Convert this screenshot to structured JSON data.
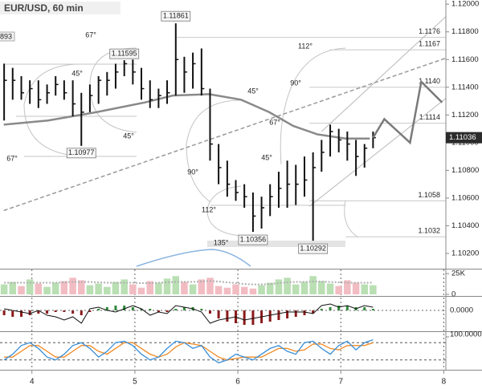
{
  "chart_data": {
    "type": "ohlc",
    "title": "EUR/USD, 60 min",
    "color": "#111111",
    "x": [
      3.73,
      3.813,
      3.897,
      3.98,
      4.063,
      4.147,
      4.23,
      4.313,
      4.397,
      4.48,
      4.563,
      4.647,
      4.73,
      4.813,
      4.897,
      4.98,
      5.063,
      5.147,
      5.23,
      5.313,
      5.397,
      5.48,
      5.563,
      5.647,
      5.73,
      5.813,
      5.897,
      5.98,
      6.063,
      6.147,
      6.23,
      6.313,
      6.397,
      6.48,
      6.563,
      6.647,
      6.73,
      6.813,
      6.897,
      6.98,
      7.063,
      7.147,
      7.23,
      7.313
    ],
    "high": [
      1.1157,
      1.1154,
      1.1148,
      1.1145,
      1.1145,
      1.1142,
      1.1148,
      1.1145,
      1.1145,
      1.1136,
      1.1142,
      1.1148,
      1.1151,
      1.1157,
      1.11595,
      1.116,
      1.1154,
      1.1145,
      1.1139,
      1.1145,
      1.11861,
      1.1162,
      1.1165,
      1.1168,
      1.1139,
      1.1099,
      1.1087,
      1.1073,
      1.107,
      1.1064,
      1.1061,
      1.107,
      1.1079,
      1.1087,
      1.1084,
      1.109,
      1.1093,
      1.1102,
      1.1113,
      1.111,
      1.1108,
      1.1102,
      1.1099,
      1.1108
    ],
    "low": [
      1.1116,
      1.1131,
      1.1131,
      1.1128,
      1.1125,
      1.1128,
      1.1134,
      1.1131,
      1.1119,
      1.10977,
      1.1122,
      1.1128,
      1.1134,
      1.1139,
      1.1148,
      1.1142,
      1.1131,
      1.1125,
      1.1125,
      1.1128,
      1.1134,
      1.1136,
      1.1139,
      1.1134,
      1.1087,
      1.107,
      1.1061,
      1.1058,
      1.1053,
      1.10356,
      1.1038,
      1.1047,
      1.1053,
      1.1053,
      1.1055,
      1.1061,
      1.10292,
      1.1079,
      1.109,
      1.1093,
      1.1087,
      1.1076,
      1.1082,
      1.1096
    ],
    "close": [
      1.1145,
      1.1145,
      1.1136,
      1.1139,
      1.1131,
      1.1136,
      1.1142,
      1.1136,
      1.1128,
      1.1122,
      1.1134,
      1.1145,
      1.1145,
      1.1151,
      1.1157,
      1.1151,
      1.1139,
      1.1131,
      1.1134,
      1.1136,
      1.116,
      1.1151,
      1.1157,
      1.1139,
      1.1099,
      1.1082,
      1.107,
      1.1064,
      1.1061,
      1.1047,
      1.1053,
      1.1061,
      1.1067,
      1.107,
      1.107,
      1.1073,
      1.1082,
      1.1093,
      1.1108,
      1.1102,
      1.1099,
      1.109,
      1.1096,
      1.11036
    ],
    "xlim": [
      3.69,
      8.02
    ],
    "xticks": [
      4,
      5,
      6,
      7,
      8
    ],
    "ylim": [
      1.1009,
      1.1203
    ],
    "yticks": [
      {
        "value": 1.102,
        "label": "1.10200"
      },
      {
        "value": 1.104,
        "label": "1.10400"
      },
      {
        "value": 1.106,
        "label": "1.10600"
      },
      {
        "value": 1.108,
        "label": "1.10800"
      },
      {
        "value": 1.11,
        "label": "1.11000"
      },
      {
        "value": 1.112,
        "label": "1.11200"
      },
      {
        "value": 1.114,
        "label": "1.11400"
      },
      {
        "value": 1.116,
        "label": "1.11600"
      },
      {
        "value": 1.118,
        "label": "1.11800"
      },
      {
        "value": 1.12,
        "label": "1.12000"
      }
    ],
    "ma": {
      "color": "#8a8a8a",
      "x": [
        3.727,
        4.156,
        4.625,
        5.094,
        5.367,
        5.719,
        6.031,
        6.305,
        6.539,
        6.773,
        7.047,
        7.281
      ],
      "values": [
        1.1113,
        1.1116,
        1.1122,
        1.1129,
        1.1134,
        1.1135,
        1.1131,
        1.1122,
        1.1112,
        1.1106,
        1.1103,
        1.1103
      ]
    },
    "trend": {
      "color": "#9a9a9a",
      "x": [
        3.727,
        8.02
      ],
      "values": [
        1.1051,
        1.1161
      ]
    },
    "channels": [
      {
        "x": [
          6.813,
          8.02
        ],
        "values": [
          1.1108,
          1.1191
        ]
      },
      {
        "x": [
          6.695,
          8.02
        ],
        "values": [
          1.1054,
          1.1132
        ]
      }
    ],
    "channel_color": "#b8b8b8",
    "projection": {
      "color": "#7a7a7a",
      "x": [
        7.313,
        7.422,
        7.672,
        7.781,
        7.984
      ],
      "values": [
        1.11036,
        1.1117,
        1.11,
        1.1144,
        1.1129
      ]
    },
    "levels": [
      {
        "x0": 5.406,
        "value": 1.1176,
        "label": "1.1176"
      },
      {
        "x0": 6.891,
        "value": 1.1167,
        "label": "1.1167"
      },
      {
        "x0": 6.695,
        "value": 1.114,
        "label": "1.1140"
      },
      {
        "x0": 6.695,
        "value": 1.1114,
        "label": "1.1114"
      },
      {
        "x0": 6.695,
        "value": 1.1058,
        "label": "1.1058"
      },
      {
        "x0": 7.047,
        "value": 1.1032,
        "label": "1.1032"
      }
    ],
    "price_labels": [
      {
        "x": 5.397,
        "value": 1.11861
      },
      {
        "x": 4.897,
        "value": 1.11595
      },
      {
        "x": 4.48,
        "value": 1.10977
      },
      {
        "x": 6.147,
        "value": 1.10356
      },
      {
        "x": 6.73,
        "value": 1.10292
      }
    ],
    "angle_labels": [
      "67°",
      "45°",
      "67°",
      "45°",
      "112°",
      "90°",
      "45°",
      "67°",
      "45°",
      "90°",
      "112°",
      "135°"
    ],
    "clipped_label": "893",
    "volume": {
      "values": [
        12000,
        15000,
        10000,
        18000,
        13000,
        9000,
        14000,
        16000,
        20000,
        17000,
        11000,
        13000,
        9000,
        15000,
        18000,
        12000,
        8000,
        16000,
        14000,
        19000,
        22000,
        15000,
        12000,
        18000,
        20000,
        10000,
        8000,
        12000,
        9000,
        7000,
        11000,
        14000,
        18000,
        20000,
        12000,
        15000,
        22000,
        16000,
        13000,
        10000,
        17000,
        14000,
        12000,
        11000
      ],
      "average": [
        14000,
        14000,
        14000,
        14000,
        14000,
        14000,
        14000,
        14500,
        15000,
        15000,
        15000,
        14500,
        14000,
        14000,
        14000,
        14000,
        13500,
        13500,
        14000,
        14500,
        15000,
        15000,
        15000,
        15500,
        16000,
        15500,
        14500,
        13500,
        12500,
        12000,
        12000,
        12500,
        13500,
        14500,
        15000,
        15000,
        15500,
        15500,
        15000,
        14500,
        14000,
        14000,
        14000,
        14000
      ],
      "ylim": [
        0,
        29000
      ],
      "yticks": [
        0,
        {
          "value": 25000,
          "label": "25K"
        }
      ],
      "up_color": "#b9dfb3",
      "down_color": "#f2bcc3",
      "average_color": "#b0b0b0"
    },
    "oscillator": {
      "histogram": [
        -0.0003,
        -0.0004,
        -0.0004,
        -0.0003,
        -0.0002,
        -0.0002,
        -0.0001,
        -0.0001,
        -0.0002,
        -0.0003,
        -0.0001,
        0.0001,
        0.0002,
        0.0003,
        0.0003,
        0.0002,
        0.0001,
        0.0001,
        -0.0001,
        -0.0001,
        0.0001,
        0.0002,
        0.0002,
        0.0001,
        -0.0002,
        -0.0005,
        -0.0007,
        -0.0008,
        -0.0009,
        -0.0009,
        -0.0008,
        -0.0007,
        -0.0006,
        -0.0005,
        -0.0004,
        -0.0003,
        -0.0002,
        0.0001,
        0.0002,
        0.0003,
        0.0003,
        0.0002,
        0.0002,
        0.0001
      ],
      "line": [
        0.0001,
        0,
        -0.0001,
        -0.0002,
        0,
        -0.0003,
        -0.0004,
        -0.0006,
        -0.0004,
        -0.0008,
        0.0001,
        0.0002,
        0,
        -0.0001,
        0.0001,
        0.0003,
        0.0001,
        -0.0003,
        -0.0001,
        -0.0002,
        0.0003,
        0.0002,
        0.0001,
        -0.0001,
        -0.0008,
        -0.0006,
        -0.0005,
        -0.0004,
        -0.0006,
        -0.0005,
        -0.0004,
        -0.0003,
        -0.0002,
        -0.0001,
        -0.0001,
        -0.0001,
        -0.0002,
        0.0003,
        0.0004,
        0.0002,
        0.0003,
        0.0001,
        0.0003,
        0.0002
      ],
      "ylim": [
        -0.00125,
        0.0008
      ],
      "yticks": [
        {
          "value": 0,
          "label": "0.0000"
        }
      ],
      "pos_color": "#2e8b3a",
      "neg_color": "#8b1a1a",
      "line_color": "#111111"
    },
    "stochastic": {
      "k": [
        20,
        40,
        70,
        80,
        60,
        30,
        20,
        40,
        70,
        80,
        60,
        30,
        50,
        80,
        85,
        70,
        40,
        20,
        30,
        60,
        85,
        80,
        60,
        70,
        30,
        10,
        20,
        40,
        30,
        20,
        40,
        60,
        70,
        50,
        40,
        80,
        85,
        60,
        40,
        70,
        85,
        55,
        80,
        90
      ],
      "d": [
        30,
        30,
        50,
        70,
        70,
        50,
        30,
        30,
        50,
        70,
        70,
        50,
        40,
        60,
        80,
        80,
        60,
        40,
        30,
        40,
        65,
        80,
        75,
        70,
        50,
        30,
        20,
        25,
        30,
        30,
        30,
        45,
        60,
        60,
        50,
        55,
        75,
        75,
        60,
        55,
        70,
        70,
        70,
        80
      ],
      "ylim": [
        0,
        100
      ],
      "yticks": [
        {
          "value": 100,
          "label": "100.0000"
        }
      ],
      "levels": [
        80,
        20
      ],
      "k_color": "#3a8fd8",
      "d_color": "#f08a24"
    }
  }
}
